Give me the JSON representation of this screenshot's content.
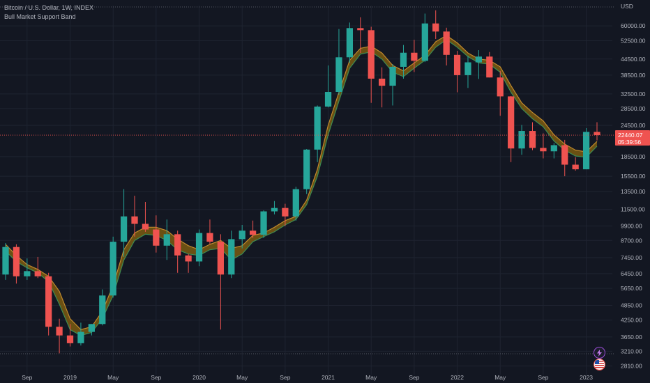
{
  "legend": {
    "symbol": "Bitcoin / U.S. Dollar, 1W, INDEX",
    "indicator": "Bull Market Support Band"
  },
  "price_axis": {
    "currency": "USD",
    "current_price": "22440.07",
    "countdown": "05:39:56"
  },
  "colors": {
    "background": "#131722",
    "up": "#26a69a",
    "down": "#ef5350",
    "band_fill": "#7a5a10",
    "band_upper": "#c08a2e",
    "band_lower": "#3d8b52",
    "grid": "#1f2431",
    "price_tag": "#ef5350"
  },
  "icons": [
    "lightning-icon",
    "us-flag-icon"
  ],
  "chart_data": {
    "type": "candlestick",
    "title": "Bitcoin / U.S. Dollar, 1W, INDEX",
    "indicator": "Bull Market Support Band",
    "y_scale": "log",
    "ylim": [
      2600,
      72000
    ],
    "y_ticks": [
      60000,
      52500,
      44500,
      38500,
      32500,
      28500,
      24500,
      18500,
      15500,
      13500,
      11500,
      9900,
      8700,
      7450,
      6450,
      5650,
      4850,
      4250,
      3650,
      3210,
      2810
    ],
    "x_ticks": [
      "Sep",
      "2019",
      "May",
      "Sep",
      "2020",
      "May",
      "Sep",
      "2021",
      "May",
      "Sep",
      "2022",
      "May",
      "Sep",
      "2023"
    ],
    "grid": true,
    "last_price": 22440.07,
    "band": {
      "dates": [
        "2018-07",
        "2018-08",
        "2018-09",
        "2018-10",
        "2018-11",
        "2018-12",
        "2019-01",
        "2019-02",
        "2019-03",
        "2019-04",
        "2019-05",
        "2019-06",
        "2019-07",
        "2019-08",
        "2019-09",
        "2019-10",
        "2019-11",
        "2019-12",
        "2020-01",
        "2020-02",
        "2020-03",
        "2020-04",
        "2020-05",
        "2020-06",
        "2020-07",
        "2020-08",
        "2020-09",
        "2020-10",
        "2020-11",
        "2020-12",
        "2021-01",
        "2021-02",
        "2021-03",
        "2021-04",
        "2021-05",
        "2021-06",
        "2021-07",
        "2021-08",
        "2021-09",
        "2021-10",
        "2021-11",
        "2021-12",
        "2022-01",
        "2022-02",
        "2022-03",
        "2022-04",
        "2022-05",
        "2022-06",
        "2022-07",
        "2022-08",
        "2022-09",
        "2022-10",
        "2022-11",
        "2022-12",
        "2023-01",
        "2023-02"
      ],
      "upper": [
        8400,
        7600,
        7000,
        6700,
        6300,
        5500,
        4300,
        3900,
        4000,
        4600,
        5800,
        8000,
        9300,
        9800,
        9800,
        9500,
        8800,
        8300,
        8000,
        8400,
        8700,
        8100,
        8300,
        9100,
        9300,
        9800,
        10400,
        10800,
        12500,
        16500,
        24500,
        33000,
        44000,
        49000,
        50000,
        47000,
        42000,
        40000,
        43000,
        46000,
        52000,
        55000,
        51500,
        47000,
        44500,
        44000,
        41500,
        35000,
        30000,
        27500,
        25500,
        22500,
        20700,
        19600,
        19300,
        21200
      ],
      "lower": [
        7900,
        7200,
        6800,
        6500,
        6000,
        4900,
        3900,
        3700,
        3800,
        4300,
        5300,
        7300,
        8700,
        9200,
        9100,
        8700,
        8000,
        7700,
        7600,
        8000,
        8100,
        7300,
        7700,
        8600,
        9000,
        9400,
        10000,
        10500,
        12000,
        15500,
        22500,
        30500,
        41000,
        46500,
        47500,
        44500,
        39500,
        38000,
        41000,
        44000,
        49500,
        53000,
        49500,
        45500,
        43000,
        42500,
        39500,
        33000,
        28500,
        26000,
        24200,
        21300,
        19600,
        18600,
        18400,
        20300
      ]
    },
    "candles": [
      {
        "date": "2018-07",
        "open": 6400,
        "high": 8500,
        "low": 6100,
        "close": 8200
      },
      {
        "date": "2018-08",
        "open": 8200,
        "high": 8400,
        "low": 5900,
        "close": 6300
      },
      {
        "date": "2018-09",
        "open": 6300,
        "high": 7400,
        "low": 6100,
        "close": 6600
      },
      {
        "date": "2018-10",
        "open": 6600,
        "high": 7500,
        "low": 6200,
        "close": 6300
      },
      {
        "date": "2018-11",
        "open": 6300,
        "high": 6500,
        "low": 3700,
        "close": 4000
      },
      {
        "date": "2018-12",
        "open": 4000,
        "high": 4300,
        "low": 3150,
        "close": 3700
      },
      {
        "date": "2019-01",
        "open": 3700,
        "high": 4100,
        "low": 3350,
        "close": 3450
      },
      {
        "date": "2019-02",
        "open": 3450,
        "high": 4150,
        "low": 3380,
        "close": 3820
      },
      {
        "date": "2019-03",
        "open": 3820,
        "high": 4100,
        "low": 3700,
        "close": 4100
      },
      {
        "date": "2019-04",
        "open": 4100,
        "high": 5600,
        "low": 4050,
        "close": 5300
      },
      {
        "date": "2019-05",
        "open": 5300,
        "high": 9000,
        "low": 5200,
        "close": 8600
      },
      {
        "date": "2019-06",
        "open": 8600,
        "high": 13800,
        "low": 7500,
        "close": 10800
      },
      {
        "date": "2019-07",
        "open": 10800,
        "high": 13000,
        "low": 9000,
        "close": 10100
      },
      {
        "date": "2019-08",
        "open": 10100,
        "high": 12300,
        "low": 9400,
        "close": 9600
      },
      {
        "date": "2019-09",
        "open": 9600,
        "high": 10900,
        "low": 7800,
        "close": 8300
      },
      {
        "date": "2019-10",
        "open": 8300,
        "high": 10500,
        "low": 7300,
        "close": 9200
      },
      {
        "date": "2019-11",
        "open": 9200,
        "high": 9500,
        "low": 6500,
        "close": 7600
      },
      {
        "date": "2019-12",
        "open": 7600,
        "high": 7700,
        "low": 6500,
        "close": 7200
      },
      {
        "date": "2020-01",
        "open": 7200,
        "high": 9600,
        "low": 6900,
        "close": 9300
      },
      {
        "date": "2020-02",
        "open": 9300,
        "high": 10500,
        "low": 8400,
        "close": 8600
      },
      {
        "date": "2020-03",
        "open": 8600,
        "high": 9200,
        "low": 3900,
        "close": 6400
      },
      {
        "date": "2020-04",
        "open": 6400,
        "high": 9500,
        "low": 6200,
        "close": 8800
      },
      {
        "date": "2020-05",
        "open": 8800,
        "high": 10000,
        "low": 8100,
        "close": 9500
      },
      {
        "date": "2020-06",
        "open": 9500,
        "high": 10400,
        "low": 8900,
        "close": 9150
      },
      {
        "date": "2020-07",
        "open": 9150,
        "high": 11400,
        "low": 8900,
        "close": 11300
      },
      {
        "date": "2020-08",
        "open": 11300,
        "high": 12400,
        "low": 11000,
        "close": 11650
      },
      {
        "date": "2020-09",
        "open": 11650,
        "high": 12100,
        "low": 9900,
        "close": 10800
      },
      {
        "date": "2020-10",
        "open": 10800,
        "high": 14100,
        "low": 10400,
        "close": 13800
      },
      {
        "date": "2020-11",
        "open": 13800,
        "high": 19800,
        "low": 13200,
        "close": 19700
      },
      {
        "date": "2020-12",
        "open": 19700,
        "high": 29300,
        "low": 17600,
        "close": 29000
      },
      {
        "date": "2021-01",
        "open": 29000,
        "high": 42000,
        "low": 28800,
        "close": 33100
      },
      {
        "date": "2021-02",
        "open": 33100,
        "high": 58300,
        "low": 32300,
        "close": 45200
      },
      {
        "date": "2021-03",
        "open": 45200,
        "high": 61800,
        "low": 43000,
        "close": 58800
      },
      {
        "date": "2021-04",
        "open": 58800,
        "high": 64800,
        "low": 47000,
        "close": 57700
      },
      {
        "date": "2021-05",
        "open": 57700,
        "high": 59500,
        "low": 30000,
        "close": 37300
      },
      {
        "date": "2021-06",
        "open": 37300,
        "high": 41300,
        "low": 28800,
        "close": 35000
      },
      {
        "date": "2021-07",
        "open": 35000,
        "high": 42500,
        "low": 29300,
        "close": 41500
      },
      {
        "date": "2021-08",
        "open": 41500,
        "high": 50500,
        "low": 37300,
        "close": 47100
      },
      {
        "date": "2021-09",
        "open": 47100,
        "high": 52900,
        "low": 39600,
        "close": 43800
      },
      {
        "date": "2021-10",
        "open": 43800,
        "high": 67000,
        "low": 43300,
        "close": 61300
      },
      {
        "date": "2021-11",
        "open": 61300,
        "high": 69000,
        "low": 53300,
        "close": 57000
      },
      {
        "date": "2021-12",
        "open": 57000,
        "high": 59000,
        "low": 42000,
        "close": 46200
      },
      {
        "date": "2022-01",
        "open": 46200,
        "high": 47900,
        "low": 33000,
        "close": 38500
      },
      {
        "date": "2022-02",
        "open": 38500,
        "high": 45800,
        "low": 34300,
        "close": 43200
      },
      {
        "date": "2022-03",
        "open": 43200,
        "high": 48200,
        "low": 37200,
        "close": 45500
      },
      {
        "date": "2022-04",
        "open": 45500,
        "high": 47400,
        "low": 37700,
        "close": 37700
      },
      {
        "date": "2022-05",
        "open": 37700,
        "high": 40000,
        "low": 26700,
        "close": 31800
      },
      {
        "date": "2022-06",
        "open": 31800,
        "high": 31900,
        "low": 17600,
        "close": 19900
      },
      {
        "date": "2022-07",
        "open": 19900,
        "high": 24600,
        "low": 18800,
        "close": 23300
      },
      {
        "date": "2022-08",
        "open": 23300,
        "high": 25200,
        "low": 19600,
        "close": 20000
      },
      {
        "date": "2022-09",
        "open": 20000,
        "high": 22800,
        "low": 18200,
        "close": 19400
      },
      {
        "date": "2022-10",
        "open": 19400,
        "high": 20900,
        "low": 18200,
        "close": 20500
      },
      {
        "date": "2022-11",
        "open": 20500,
        "high": 21500,
        "low": 15500,
        "close": 17200
      },
      {
        "date": "2022-12",
        "open": 17200,
        "high": 18400,
        "low": 16300,
        "close": 16500
      },
      {
        "date": "2023-01",
        "open": 16500,
        "high": 23900,
        "low": 16500,
        "close": 23100
      },
      {
        "date": "2023-02",
        "open": 23100,
        "high": 25200,
        "low": 21400,
        "close": 22440
      }
    ]
  }
}
